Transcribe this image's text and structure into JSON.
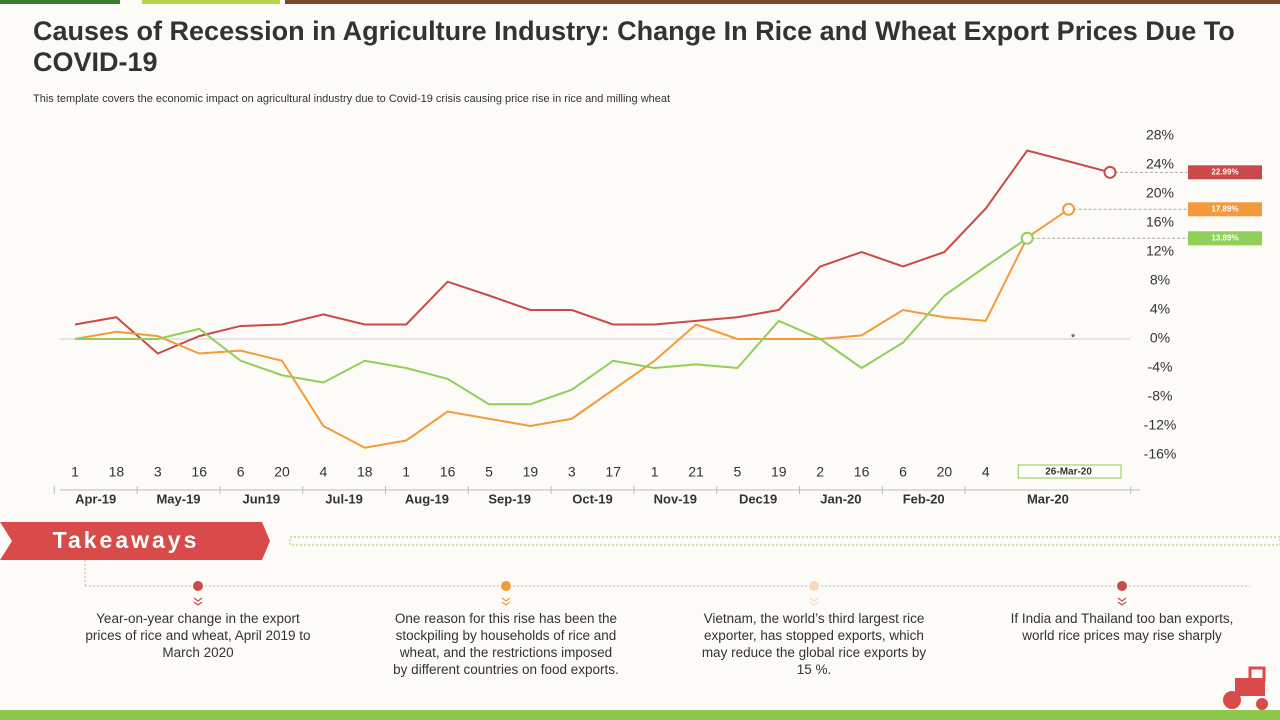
{
  "header": {
    "title": "Causes of Recession in Agriculture Industry: Change In Rice and Wheat Export Prices Due To COVID-19",
    "subtitle": "This template covers the economic impact on agricultural industry due to Covid-19 crisis causing price rise in rice and milling wheat"
  },
  "chart_data": {
    "type": "line",
    "categories": [
      "1",
      "18",
      "3",
      "16",
      "6",
      "20",
      "4",
      "18",
      "1",
      "16",
      "5",
      "19",
      "3",
      "17",
      "1",
      "21",
      "5",
      "19",
      "2",
      "16",
      "6",
      "20",
      "4",
      null,
      null,
      null
    ],
    "months": [
      {
        "label": "Apr-19",
        "span": 2
      },
      {
        "label": "May-19",
        "span": 2
      },
      {
        "label": "Jun19",
        "span": 2
      },
      {
        "label": "Jul-19",
        "span": 2
      },
      {
        "label": "Aug-19",
        "span": 2
      },
      {
        "label": "Sep-19",
        "span": 2
      },
      {
        "label": "Oct-19",
        "span": 2
      },
      {
        "label": "Nov-19",
        "span": 2
      },
      {
        "label": "Dec19",
        "span": 2
      },
      {
        "label": "Jan-20",
        "span": 2
      },
      {
        "label": "Feb-20",
        "span": 2
      },
      {
        "label": "Mar-20",
        "span": 4
      }
    ],
    "highlight_label": "26-Mar-20",
    "annotation": "*",
    "ylim": [
      -16,
      28
    ],
    "yticks": [
      {
        "value": -16,
        "label": "-16%"
      },
      {
        "value": -12,
        "label": "-12%"
      },
      {
        "value": -8,
        "label": "-8%"
      },
      {
        "value": -4,
        "label": "-4%"
      },
      {
        "value": 0,
        "label": "0%"
      },
      {
        "value": 4,
        "label": "4%"
      },
      {
        "value": 8,
        "label": "8%"
      },
      {
        "value": 12,
        "label": "12%"
      },
      {
        "value": 16,
        "label": "16%"
      },
      {
        "value": 20,
        "label": "20%"
      },
      {
        "value": 24,
        "label": "24%"
      },
      {
        "value": 28,
        "label": "28%"
      }
    ],
    "zero_line": true,
    "series": [
      {
        "color": "#c94a48",
        "values": [
          2,
          3,
          -2,
          0.4,
          1.8,
          2,
          3.4,
          2,
          2,
          7.9,
          6,
          4,
          4,
          2,
          2,
          2.5,
          3,
          4,
          10,
          12,
          10,
          12,
          18,
          26,
          24.5,
          22.99
        ],
        "value_labels": [
          null,
          null,
          null,
          null,
          null,
          null,
          null,
          null,
          null,
          null,
          null,
          null,
          null,
          null,
          null,
          null,
          null,
          null,
          null,
          null,
          null,
          null,
          null,
          null,
          null,
          "22.99%"
        ]
      },
      {
        "color": "#f39a3c",
        "values": [
          0,
          1,
          0.4,
          -2,
          -1.6,
          -3,
          -12,
          -15,
          -14,
          -10,
          -11,
          -12,
          -11,
          -7,
          -3,
          2,
          0,
          0,
          0,
          0.5,
          4,
          3,
          2.5,
          14,
          17.89,
          null
        ],
        "value_labels": [
          null,
          null,
          null,
          null,
          null,
          null,
          null,
          null,
          null,
          null,
          null,
          null,
          null,
          null,
          null,
          null,
          null,
          null,
          null,
          null,
          null,
          null,
          null,
          null,
          "17.89%",
          null
        ]
      },
      {
        "color": "#8fcf5a",
        "values": [
          0,
          0,
          0,
          1.4,
          -3,
          -5,
          -6,
          -3,
          -4,
          -5.5,
          -9,
          -9,
          -7,
          -3,
          -4,
          -3.5,
          -4,
          2.5,
          0,
          -4,
          -0.5,
          6,
          10,
          13.89,
          null,
          null
        ],
        "value_labels": [
          null,
          null,
          null,
          null,
          null,
          null,
          null,
          null,
          null,
          null,
          null,
          null,
          null,
          null,
          null,
          null,
          null,
          null,
          null,
          null,
          null,
          null,
          null,
          "13.89%",
          null,
          null
        ]
      }
    ]
  },
  "takeaways": {
    "heading": "Takeaways",
    "items": [
      {
        "color": "#c94a48",
        "text": "Year-on-year change in the export prices of rice and wheat, April 2019 to March 2020"
      },
      {
        "color": "#f39a3c",
        "text": "One reason for this rise has been the stockpiling by households of rice and wheat, and the restrictions imposed by different countries on food exports."
      },
      {
        "color": "#f8d9c0",
        "text": "Vietnam, the world’s third largest rice exporter, has stopped exports, which may reduce the global rice exports by 15 %."
      },
      {
        "color": "#c94a48",
        "text": "If India and Thailand too ban exports, world rice prices may rise sharply"
      }
    ]
  }
}
